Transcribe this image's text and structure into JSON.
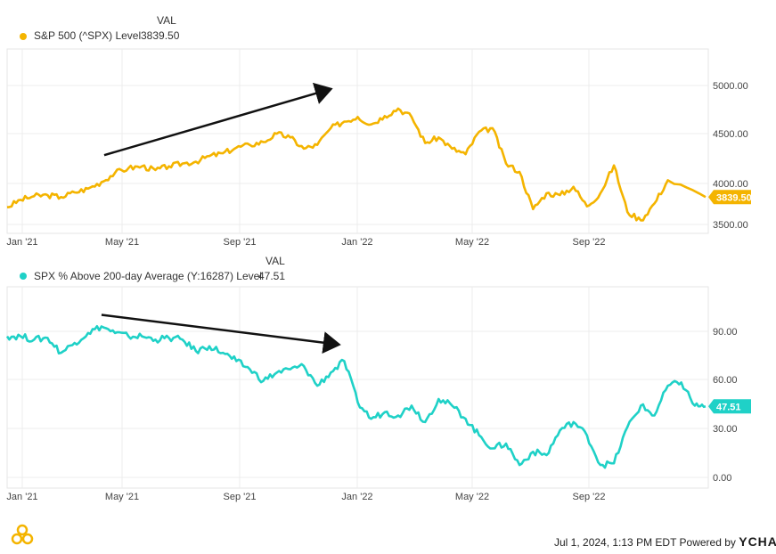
{
  "chart_data": [
    {
      "type": "line",
      "legend_header": "VAL",
      "series": [
        {
          "name": "S&P 500 (^SPX) Level",
          "last_value": "3839.50",
          "color": "#f4b400"
        }
      ],
      "x_ticks": [
        "Jan '21",
        "May '21",
        "Sep '21",
        "Jan '22",
        "May '22",
        "Sep '22"
      ],
      "y_ticks": [
        "5000.00",
        "4500.00",
        "4000.00",
        "3500.00"
      ],
      "ylim": [
        3450,
        5430
      ],
      "x": [
        0,
        0.5,
        1,
        1.5,
        2,
        2.5,
        3,
        3.5,
        4,
        4.5,
        5,
        5.5,
        6,
        6.5,
        7,
        7.5,
        8,
        8.5,
        9,
        9.5,
        10,
        10.5,
        11,
        11.5,
        12,
        12.5,
        13,
        13.5,
        14,
        14.5,
        15,
        15.5,
        16,
        16.5,
        17,
        17.5,
        18,
        18.5,
        19,
        19.5,
        20,
        20.5,
        21,
        21.5,
        22,
        22.5,
        23,
        23.5,
        24,
        24.5
      ],
      "values": [
        3730,
        3810,
        3850,
        3860,
        3840,
        3890,
        3930,
        4000,
        4100,
        4150,
        4170,
        4130,
        4170,
        4200,
        4220,
        4280,
        4310,
        4370,
        4400,
        4430,
        4520,
        4480,
        4360,
        4400,
        4580,
        4650,
        4700,
        4620,
        4710,
        4790,
        4700,
        4420,
        4480,
        4360,
        4300,
        4540,
        4580,
        4200,
        4110,
        3710,
        3880,
        3860,
        3950,
        3740,
        3880,
        4180,
        3680,
        3590,
        3770,
        4020
      ],
      "last": {
        "x": 25.9,
        "value": 3839.5
      },
      "color": "#f4b400",
      "annotation_arrow": {
        "from": {
          "x": 3.6,
          "value": 4290
        },
        "to": {
          "x": 12.0,
          "value": 5000
        }
      }
    },
    {
      "type": "line",
      "legend_header": "VAL",
      "series": [
        {
          "name": "SPX % Above 200-day Average (Y:16287) Level",
          "last_value": "47.51",
          "color": "#1fd1c7"
        }
      ],
      "x_ticks": [
        "Jan '21",
        "May '21",
        "Sep '21",
        "Jan '22",
        "May '22",
        "Sep '22"
      ],
      "y_ticks": [
        "90.00",
        "60.00",
        "30.00",
        "0.00"
      ],
      "ylim": [
        -2,
        120
      ],
      "x": [
        0,
        0.5,
        1,
        1.5,
        2,
        2.5,
        3,
        3.5,
        4,
        4.5,
        5,
        5.5,
        6,
        6.5,
        7,
        7.5,
        8,
        8.5,
        9,
        9.5,
        10,
        10.5,
        11,
        11.5,
        12,
        12.5,
        13,
        13.5,
        14,
        14.5,
        15,
        15.5,
        16,
        16.5,
        17,
        17.5,
        18,
        18.5,
        19,
        19.5,
        20,
        20.5,
        21,
        21.5,
        22,
        22.5,
        23,
        23.5,
        24,
        24.5,
        25,
        25.5
      ],
      "values": [
        90,
        90,
        88,
        89,
        80,
        86,
        92,
        96,
        92,
        90,
        90,
        88,
        89,
        88,
        81,
        84,
        80,
        75,
        70,
        63,
        68,
        70,
        72,
        60,
        68,
        75,
        50,
        40,
        44,
        42,
        48,
        38,
        52,
        48,
        40,
        30,
        22,
        25,
        12,
        20,
        18,
        33,
        38,
        30,
        12,
        13,
        35,
        48,
        42,
        60,
        62,
        48
      ],
      "last": {
        "x": 25.9,
        "value": 47.51
      },
      "color": "#1fd1c7",
      "annotation_arrow": {
        "from": {
          "x": 3.5,
          "value": 103
        },
        "to": {
          "x": 12.3,
          "value": 85
        }
      }
    }
  ],
  "footer": {
    "timestamp": "Jul 1, 2024, 1:13 PM EDT Powered by",
    "brand": "YCHARTS"
  },
  "logo_icon": "ycharts-logo-icon"
}
